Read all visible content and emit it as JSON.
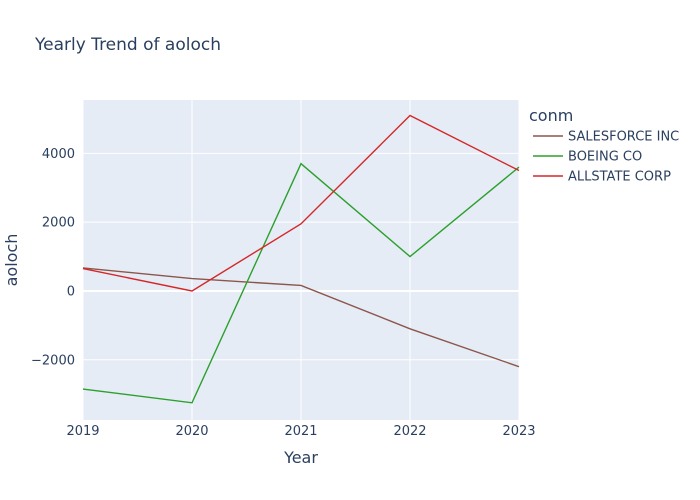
{
  "chart_data": {
    "type": "line",
    "title": "Yearly Trend of aoloch",
    "xlabel": "Year",
    "ylabel": "aoloch",
    "x": [
      2019,
      2020,
      2021,
      2022,
      2023
    ],
    "xlim": [
      2019,
      2023
    ],
    "ylim": [
      -3750,
      5550
    ],
    "yticks": [
      -2000,
      0,
      2000,
      4000
    ],
    "ytick_labels": [
      "−2000",
      "0",
      "2000",
      "4000"
    ],
    "grid": true,
    "legend_title": "conm",
    "legend_position": "top-right outside",
    "series": [
      {
        "name": "SALESFORCE INC",
        "color": "#8c564b",
        "values": [
          670,
          360,
          160,
          -1100,
          -2200
        ]
      },
      {
        "name": "BOEING CO",
        "color": "#2ca02c",
        "values": [
          -2850,
          -3250,
          3700,
          1000,
          3600
        ]
      },
      {
        "name": "ALLSTATE CORP",
        "color": "#d62728",
        "values": [
          650,
          0,
          1950,
          5100,
          3500
        ]
      }
    ]
  }
}
